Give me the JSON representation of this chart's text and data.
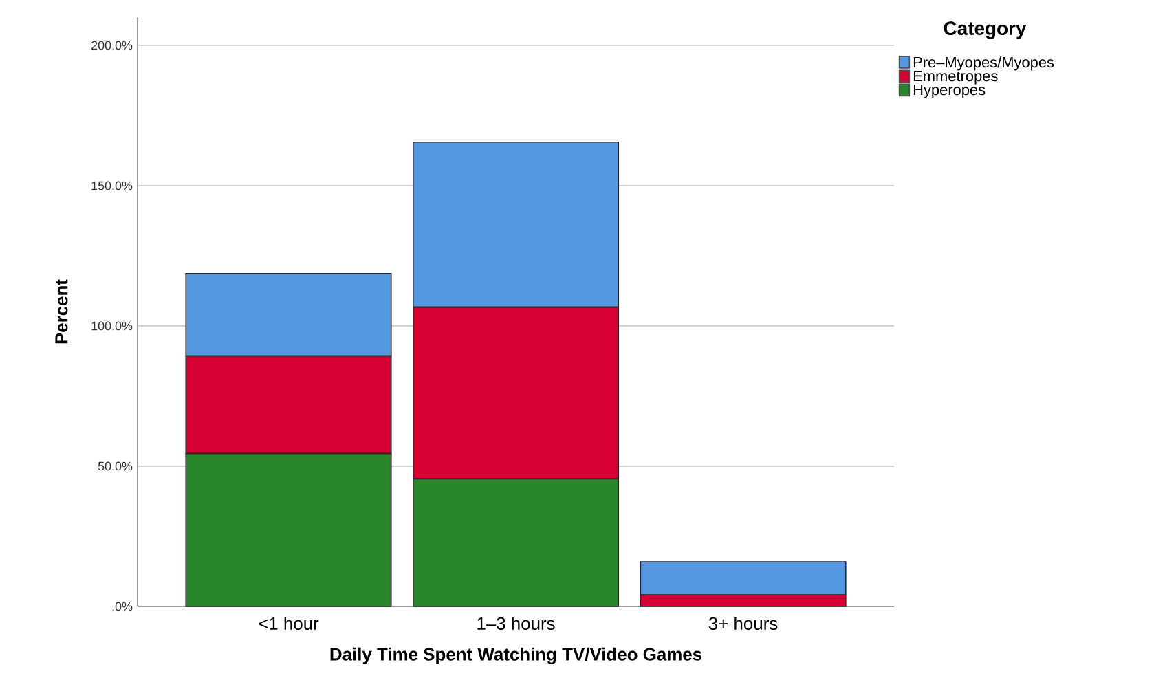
{
  "chart_data": {
    "type": "bar",
    "stacked": true,
    "xlabel": "Daily Time Spent Watching TV/Video Games",
    "ylabel": "Percent",
    "legend_title": "Category",
    "categories": [
      "<1 hour",
      "1–3 hours",
      "3+ hours"
    ],
    "series": [
      {
        "name": "Hyperopes",
        "color": "#2a862a",
        "values": [
          54.5,
          45.5,
          0
        ]
      },
      {
        "name": "Emmetropes",
        "color": "#d60032",
        "values": [
          34.8,
          61.2,
          4.1
        ]
      },
      {
        "name": "Pre–Myopes/Myopes",
        "color": "#5598e2",
        "values": [
          29.4,
          58.8,
          11.8
        ]
      }
    ],
    "ylim": [
      0,
      210
    ],
    "yticks": [
      {
        "value": 0,
        "label": ".0%"
      },
      {
        "value": 50,
        "label": "50.0%"
      },
      {
        "value": 100,
        "label": "100.0%"
      },
      {
        "value": 150,
        "label": "150.0%"
      },
      {
        "value": 200,
        "label": "200.0%"
      }
    ],
    "grid": "y",
    "legend": "top right"
  }
}
